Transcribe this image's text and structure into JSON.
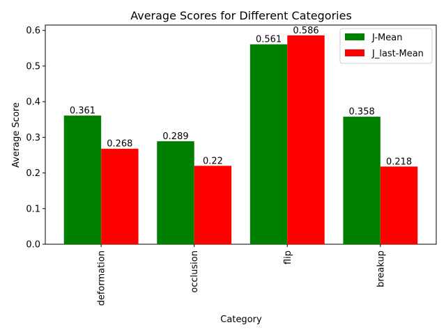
{
  "chart_data": {
    "type": "bar",
    "title": "Average Scores for Different Categories",
    "xlabel": "Category",
    "ylabel": "Average Score",
    "categories": [
      "deformation",
      "occlusion",
      "flip",
      "breakup"
    ],
    "series": [
      {
        "name": "J-Mean",
        "color": "#008000",
        "values": [
          0.361,
          0.289,
          0.561,
          0.358
        ],
        "labels": [
          "0.361",
          "0.289",
          "0.561",
          "0.358"
        ]
      },
      {
        "name": "J_last-Mean",
        "color": "#ff0000",
        "values": [
          0.268,
          0.22,
          0.586,
          0.218
        ],
        "labels": [
          "0.268",
          "0.22",
          "0.586",
          "0.218"
        ]
      }
    ],
    "ylim": [
      0,
      0.615
    ],
    "yticks": [
      0.0,
      0.1,
      0.2,
      0.3,
      0.4,
      0.5,
      0.6
    ],
    "ytick_labels": [
      "0.0",
      "0.1",
      "0.2",
      "0.3",
      "0.4",
      "0.5",
      "0.6"
    ],
    "legend_position": "top-right",
    "grid": false
  }
}
